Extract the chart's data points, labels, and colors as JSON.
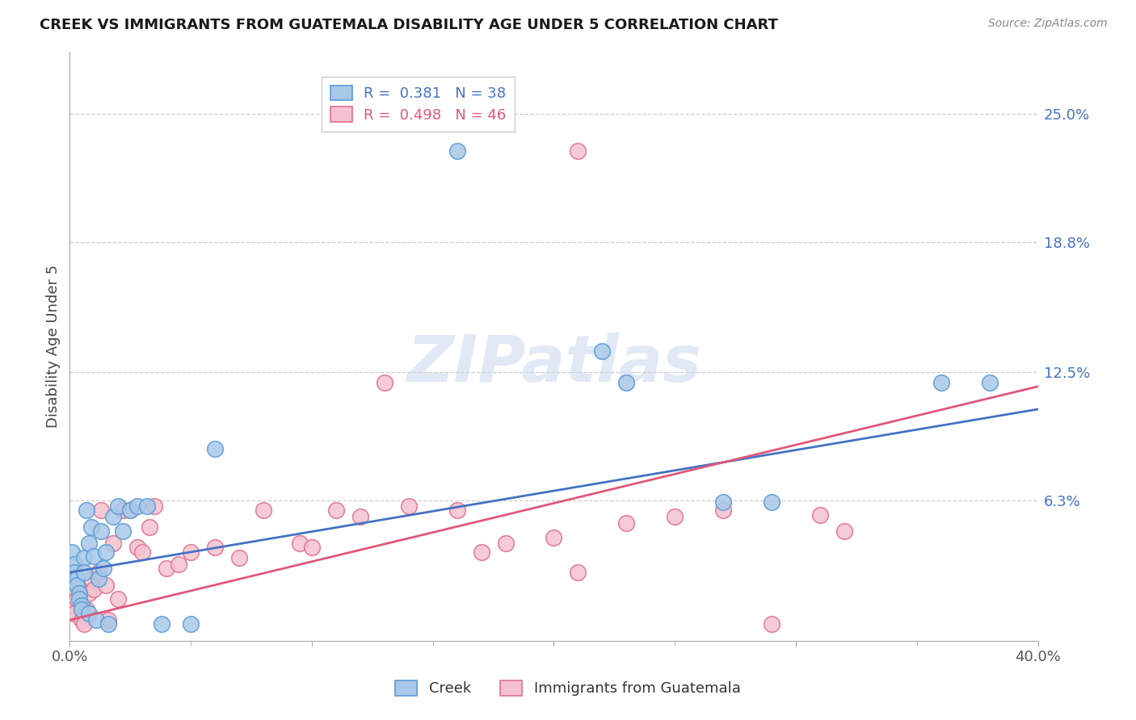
{
  "title": "CREEK VS IMMIGRANTS FROM GUATEMALA DISABILITY AGE UNDER 5 CORRELATION CHART",
  "source": "Source: ZipAtlas.com",
  "ylabel": "Disability Age Under 5",
  "xlim": [
    0.0,
    0.4
  ],
  "ylim": [
    -0.005,
    0.28
  ],
  "yticks": [
    0.0,
    0.063,
    0.125,
    0.188,
    0.25
  ],
  "ytick_labels": [
    "",
    "6.3%",
    "12.5%",
    "18.8%",
    "25.0%"
  ],
  "xticks": [
    0.0,
    0.1,
    0.2,
    0.3,
    0.4
  ],
  "xtick_labels": [
    "0.0%",
    "",
    "",
    "",
    "40.0%"
  ],
  "xtick_minor": [
    0.05,
    0.1,
    0.15,
    0.2,
    0.25,
    0.3,
    0.35
  ],
  "creek_color": "#a8c8e8",
  "creek_edge_color": "#5b9bd5",
  "guate_color": "#f4c2ce",
  "guate_edge_color": "#e07090",
  "creek_line_color": "#4472c4",
  "guate_line_color": "#e05878",
  "creek_R": 0.381,
  "creek_N": 38,
  "guate_R": 0.498,
  "guate_N": 46,
  "watermark": "ZIPatlas",
  "legend_label_creek": "Creek",
  "legend_label_guate": "Immigrants from Guatemala",
  "creek_x": [
    0.001,
    0.002,
    0.002,
    0.003,
    0.003,
    0.004,
    0.004,
    0.005,
    0.005,
    0.006,
    0.006,
    0.007,
    0.008,
    0.008,
    0.009,
    0.01,
    0.011,
    0.012,
    0.013,
    0.014,
    0.015,
    0.016,
    0.018,
    0.02,
    0.022,
    0.025,
    0.028,
    0.032,
    0.038,
    0.05,
    0.06,
    0.16,
    0.22,
    0.23,
    0.27,
    0.29,
    0.36,
    0.38
  ],
  "creek_y": [
    0.038,
    0.032,
    0.028,
    0.025,
    0.022,
    0.018,
    0.015,
    0.012,
    0.01,
    0.035,
    0.028,
    0.058,
    0.042,
    0.008,
    0.05,
    0.036,
    0.005,
    0.025,
    0.048,
    0.03,
    0.038,
    0.003,
    0.055,
    0.06,
    0.048,
    0.058,
    0.06,
    0.06,
    0.003,
    0.003,
    0.088,
    0.232,
    0.135,
    0.12,
    0.062,
    0.062,
    0.12,
    0.12
  ],
  "guate_x": [
    0.001,
    0.002,
    0.003,
    0.004,
    0.005,
    0.006,
    0.007,
    0.008,
    0.009,
    0.01,
    0.012,
    0.013,
    0.015,
    0.016,
    0.018,
    0.02,
    0.022,
    0.025,
    0.028,
    0.03,
    0.033,
    0.035,
    0.04,
    0.045,
    0.05,
    0.06,
    0.07,
    0.08,
    0.095,
    0.1,
    0.11,
    0.12,
    0.13,
    0.14,
    0.16,
    0.17,
    0.18,
    0.2,
    0.21,
    0.23,
    0.25,
    0.27,
    0.29,
    0.31,
    0.32,
    0.21
  ],
  "guate_y": [
    0.012,
    0.008,
    0.015,
    0.02,
    0.005,
    0.003,
    0.01,
    0.018,
    0.025,
    0.02,
    0.028,
    0.058,
    0.022,
    0.005,
    0.042,
    0.015,
    0.058,
    0.058,
    0.04,
    0.038,
    0.05,
    0.06,
    0.03,
    0.032,
    0.038,
    0.04,
    0.035,
    0.058,
    0.042,
    0.04,
    0.058,
    0.055,
    0.12,
    0.06,
    0.058,
    0.038,
    0.042,
    0.045,
    0.028,
    0.052,
    0.055,
    0.058,
    0.003,
    0.056,
    0.048,
    0.232
  ],
  "creek_line_x0": 0.0,
  "creek_line_y0": 0.028,
  "creek_line_x1": 0.4,
  "creek_line_y1": 0.107,
  "guate_line_x0": 0.0,
  "guate_line_y0": 0.005,
  "guate_line_x1": 0.4,
  "guate_line_y1": 0.118
}
